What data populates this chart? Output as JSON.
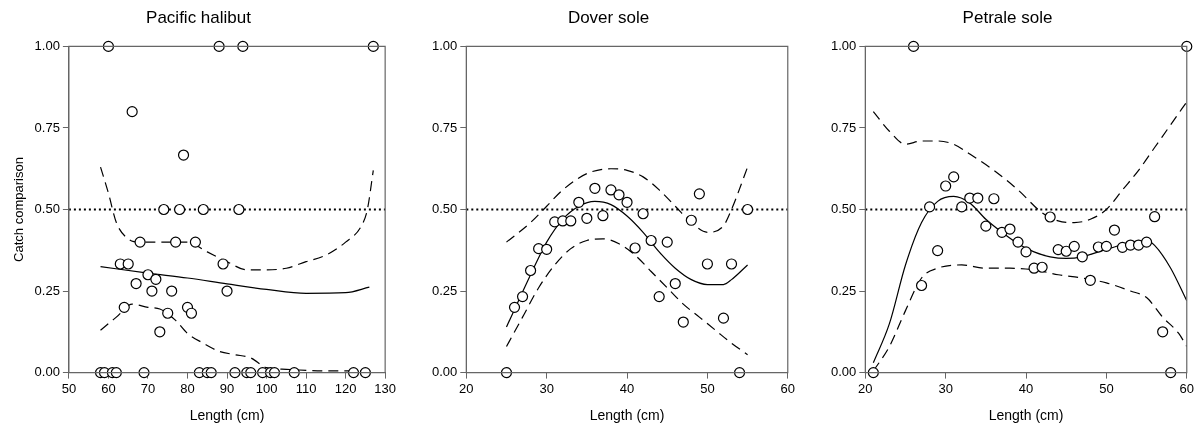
{
  "chart_data": [
    {
      "type": "scatter",
      "title": "Pacific halibut",
      "xlabel": "Length (cm)",
      "ylabel": "Catch comparison",
      "xlim": [
        50,
        130
      ],
      "xticks": [
        50,
        60,
        70,
        80,
        90,
        100,
        110,
        120,
        130
      ],
      "ylim": [
        0,
        1
      ],
      "yticks": [
        {
          "value": 0,
          "label": "0.00"
        },
        {
          "value": 0.25,
          "label": "0.25"
        },
        {
          "value": 0.5,
          "label": "0.50"
        },
        {
          "value": 0.75,
          "label": "0.75"
        },
        {
          "value": 1,
          "label": "1.00"
        }
      ],
      "ref_lines": [
        {
          "axis": "y",
          "value": 0.5,
          "line_style": "dotted",
          "color": "#000000"
        }
      ],
      "series": [
        {
          "type": "scatter",
          "marker": "circle",
          "color": "#000000",
          "x": [
            60,
            88,
            94,
            127,
            66,
            79,
            74,
            78,
            84,
            93,
            68,
            77,
            82,
            63,
            65,
            89,
            70,
            67,
            72,
            71,
            76,
            90,
            64,
            80,
            75,
            81,
            73,
            58,
            59,
            61,
            62,
            69,
            83,
            85,
            86,
            92,
            95,
            96,
            99,
            101,
            102,
            107,
            122,
            125
          ],
          "values": [
            1,
            1,
            1,
            1,
            0.8,
            0.667,
            0.5,
            0.5,
            0.5,
            0.5,
            0.4,
            0.4,
            0.4,
            0.333,
            0.333,
            0.333,
            0.3,
            0.273,
            0.286,
            0.25,
            0.25,
            0.25,
            0.2,
            0.2,
            0.182,
            0.182,
            0.125,
            0,
            0,
            0,
            0,
            0,
            0,
            0,
            0,
            0,
            0,
            0,
            0,
            0,
            0,
            0,
            0,
            0
          ]
        },
        {
          "type": "line",
          "line_style": "solid",
          "color": "#000000",
          "x": [
            58,
            70,
            80,
            90,
            100,
            110,
            120,
            126
          ],
          "values": [
            0.325,
            0.305,
            0.29,
            0.272,
            0.255,
            0.243,
            0.245,
            0.262
          ]
        },
        {
          "type": "line",
          "line_style": "dashed",
          "color": "#000000",
          "x": [
            58,
            60,
            62,
            65,
            68,
            72,
            76,
            80,
            85,
            90,
            95,
            100,
            105,
            110,
            115,
            120,
            124,
            125.5,
            127
          ],
          "values": [
            0.63,
            0.55,
            0.46,
            0.41,
            0.4,
            0.4,
            0.4,
            0.4,
            0.37,
            0.34,
            0.315,
            0.315,
            0.32,
            0.34,
            0.36,
            0.4,
            0.45,
            0.5,
            0.62
          ]
        },
        {
          "type": "line",
          "line_style": "dashed",
          "color": "#000000",
          "x": [
            58,
            62,
            66,
            70,
            73,
            77,
            80,
            84,
            88,
            92,
            96,
            100,
            105,
            115,
            126
          ],
          "values": [
            0.13,
            0.17,
            0.21,
            0.2,
            0.195,
            0.16,
            0.12,
            0.09,
            0.065,
            0.055,
            0.045,
            0.015,
            0.01,
            0.005,
            0.005
          ]
        }
      ]
    },
    {
      "type": "scatter",
      "title": "Dover sole",
      "xlabel": "Length (cm)",
      "xlim": [
        20,
        60
      ],
      "xticks": [
        20,
        30,
        40,
        50,
        60
      ],
      "ylim": [
        0,
        1
      ],
      "yticks": [
        {
          "value": 0,
          "label": "0.00"
        },
        {
          "value": 0.25,
          "label": "0.25"
        },
        {
          "value": 0.5,
          "label": "0.50"
        },
        {
          "value": 0.75,
          "label": "0.75"
        },
        {
          "value": 1,
          "label": "1.00"
        }
      ],
      "ref_lines": [
        {
          "axis": "y",
          "value": 0.5,
          "line_style": "dotted",
          "color": "#000000"
        }
      ],
      "series": [
        {
          "type": "scatter",
          "marker": "circle",
          "color": "#000000",
          "x": [
            25,
            26,
            27,
            28,
            29,
            30,
            31,
            32,
            33,
            34,
            35,
            36,
            37,
            38,
            39,
            40,
            41,
            42,
            43,
            44,
            45,
            46,
            47,
            48,
            49,
            50,
            52,
            53,
            54,
            55
          ],
          "values": [
            0,
            0.2,
            0.233,
            0.313,
            0.38,
            0.378,
            0.462,
            0.465,
            0.465,
            0.522,
            0.473,
            0.565,
            0.481,
            0.56,
            0.545,
            0.522,
            0.382,
            0.487,
            0.405,
            0.233,
            0.4,
            0.273,
            0.155,
            0.467,
            0.548,
            0.333,
            0.167,
            0.333,
            0,
            0.5
          ]
        },
        {
          "type": "line",
          "line_style": "solid",
          "color": "#000000",
          "x": [
            25,
            28,
            30,
            32,
            34,
            36,
            38,
            40,
            42,
            44,
            46,
            48,
            50,
            52,
            53,
            55
          ],
          "values": [
            0.14,
            0.3,
            0.4,
            0.47,
            0.51,
            0.525,
            0.515,
            0.48,
            0.43,
            0.37,
            0.32,
            0.285,
            0.27,
            0.27,
            0.285,
            0.33
          ]
        },
        {
          "type": "line",
          "line_style": "dashed",
          "color": "#000000",
          "x": [
            25,
            28,
            30,
            32,
            35,
            38,
            40,
            42,
            44,
            46,
            48,
            50,
            52,
            53,
            55
          ],
          "values": [
            0.4,
            0.46,
            0.51,
            0.56,
            0.61,
            0.625,
            0.62,
            0.6,
            0.56,
            0.51,
            0.46,
            0.43,
            0.45,
            0.5,
            0.63
          ]
        },
        {
          "type": "line",
          "line_style": "dashed",
          "color": "#000000",
          "x": [
            25,
            27,
            29,
            31,
            33,
            35,
            37,
            39,
            41,
            43,
            45,
            47,
            49,
            51,
            53,
            55
          ],
          "values": [
            0.08,
            0.17,
            0.26,
            0.33,
            0.38,
            0.405,
            0.41,
            0.395,
            0.36,
            0.31,
            0.26,
            0.21,
            0.17,
            0.13,
            0.09,
            0.055
          ]
        }
      ]
    },
    {
      "type": "scatter",
      "title": "Petrale sole",
      "xlabel": "Length (cm)",
      "xlim": [
        20,
        60
      ],
      "xticks": [
        20,
        30,
        40,
        50,
        60
      ],
      "ylim": [
        0,
        1
      ],
      "yticks": [
        {
          "value": 0,
          "label": "0.00"
        },
        {
          "value": 0.25,
          "label": "0.25"
        },
        {
          "value": 0.5,
          "label": "0.50"
        },
        {
          "value": 0.75,
          "label": "0.75"
        },
        {
          "value": 1,
          "label": "1.00"
        }
      ],
      "ref_lines": [
        {
          "axis": "y",
          "value": 0.5,
          "line_style": "dotted",
          "color": "#000000"
        }
      ],
      "series": [
        {
          "type": "scatter",
          "marker": "circle",
          "color": "#000000",
          "x": [
            21,
            26,
            60,
            27,
            28,
            29,
            30,
            31,
            32,
            33,
            34,
            35,
            36,
            37,
            38,
            39,
            40,
            41,
            42,
            43,
            44,
            45,
            46,
            47,
            48,
            49,
            50,
            51,
            52,
            53,
            54,
            55,
            56,
            57,
            58
          ],
          "values": [
            0,
            1,
            1,
            0.267,
            0.508,
            0.374,
            0.572,
            0.6,
            0.508,
            0.535,
            0.535,
            0.449,
            0.533,
            0.43,
            0.44,
            0.4,
            0.37,
            0.32,
            0.323,
            0.477,
            0.377,
            0.372,
            0.387,
            0.355,
            0.283,
            0.385,
            0.387,
            0.437,
            0.384,
            0.391,
            0.391,
            0.4,
            0.478,
            0.125,
            0
          ]
        },
        {
          "type": "line",
          "line_style": "solid",
          "color": "#000000",
          "x": [
            21,
            23,
            25,
            27,
            29,
            31,
            33,
            35,
            37,
            39,
            41,
            43,
            45,
            47,
            49,
            51,
            53,
            55,
            56,
            58,
            60
          ],
          "values": [
            0.03,
            0.15,
            0.33,
            0.46,
            0.525,
            0.54,
            0.52,
            0.47,
            0.43,
            0.395,
            0.37,
            0.355,
            0.35,
            0.355,
            0.37,
            0.385,
            0.4,
            0.405,
            0.39,
            0.32,
            0.22
          ]
        },
        {
          "type": "line",
          "line_style": "dashed",
          "color": "#000000",
          "x": [
            21,
            23,
            25,
            27,
            29,
            31,
            33,
            36,
            39,
            42,
            44,
            46,
            48,
            50,
            52,
            54,
            56,
            58,
            60
          ],
          "values": [
            0.8,
            0.74,
            0.7,
            0.71,
            0.71,
            0.7,
            0.67,
            0.62,
            0.56,
            0.49,
            0.465,
            0.46,
            0.47,
            0.5,
            0.56,
            0.62,
            0.69,
            0.76,
            0.83
          ]
        },
        {
          "type": "line",
          "line_style": "dashed",
          "color": "#000000",
          "x": [
            21,
            23,
            25,
            27,
            29,
            32,
            35,
            38,
            41,
            44,
            47,
            50,
            53,
            55,
            57,
            59,
            60
          ],
          "values": [
            0.005,
            0.08,
            0.19,
            0.29,
            0.32,
            0.33,
            0.32,
            0.32,
            0.315,
            0.3,
            0.29,
            0.275,
            0.25,
            0.23,
            0.17,
            0.12,
            0.08
          ]
        }
      ]
    }
  ]
}
